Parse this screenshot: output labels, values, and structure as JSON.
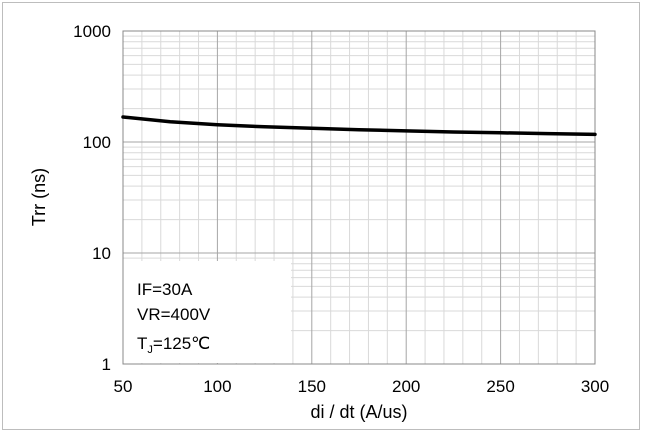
{
  "chart_data": {
    "type": "line",
    "xlabel": "di / dt (A/us)",
    "ylabel": "Trr (ns)",
    "xlim": [
      50,
      300
    ],
    "ylim": [
      1,
      1000
    ],
    "yscale": "log",
    "grid": true,
    "xticks": [
      "50",
      "100",
      "150",
      "200",
      "250",
      "300"
    ],
    "yticks": [
      "1",
      "10",
      "100",
      "1000"
    ],
    "series": [
      {
        "color": "#000000",
        "x": [
          50,
          75,
          100,
          125,
          150,
          175,
          200,
          225,
          250,
          275,
          300
        ],
        "y": [
          168,
          152,
          143,
          137,
          133,
          129,
          126,
          123,
          121,
          119,
          117
        ]
      }
    ],
    "annotations": {
      "if": "IF=30A",
      "vr": "VR=400V",
      "tj_main": "T",
      "tj_sub": "J",
      "tj_value": "=125℃"
    }
  }
}
